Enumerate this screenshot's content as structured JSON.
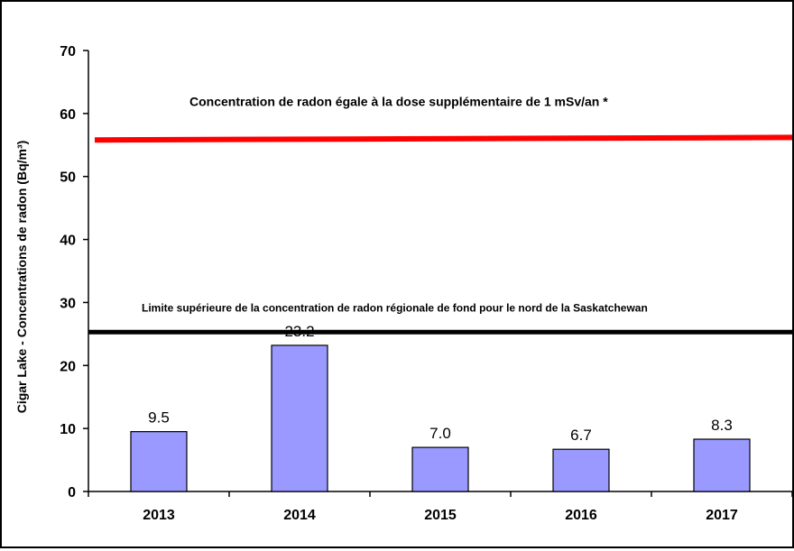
{
  "chart_data": {
    "type": "bar",
    "title": "",
    "xlabel": "",
    "ylabel": "Cigar Lake -  Concentrations de radon (Bq/m³)",
    "ylim": [
      0,
      70
    ],
    "yticks": [
      0,
      10,
      20,
      30,
      40,
      50,
      60,
      70
    ],
    "grid": false,
    "legend": "none",
    "categories": [
      "2013",
      "2014",
      "2015",
      "2016",
      "2017"
    ],
    "values": [
      9.5,
      23.2,
      7.0,
      6.7,
      8.3
    ],
    "data_labels": [
      "9.5",
      "23.2",
      "7.0",
      "6.7",
      "8.3"
    ],
    "bar_color": "#9999ff",
    "bar_edge_color": "#000000",
    "reference_lines": [
      {
        "label": "Concentration  de radon  égale à la dose supplémentaire  de 1 mSv/an *",
        "y_start": 55.8,
        "y_end": 56.2,
        "color": "#ff0000"
      },
      {
        "label": "Limite supérieure de la concentration de radon régionale de fond pour le nord de la Saskatchewan",
        "y": 25.3,
        "color": "#000000"
      }
    ]
  }
}
